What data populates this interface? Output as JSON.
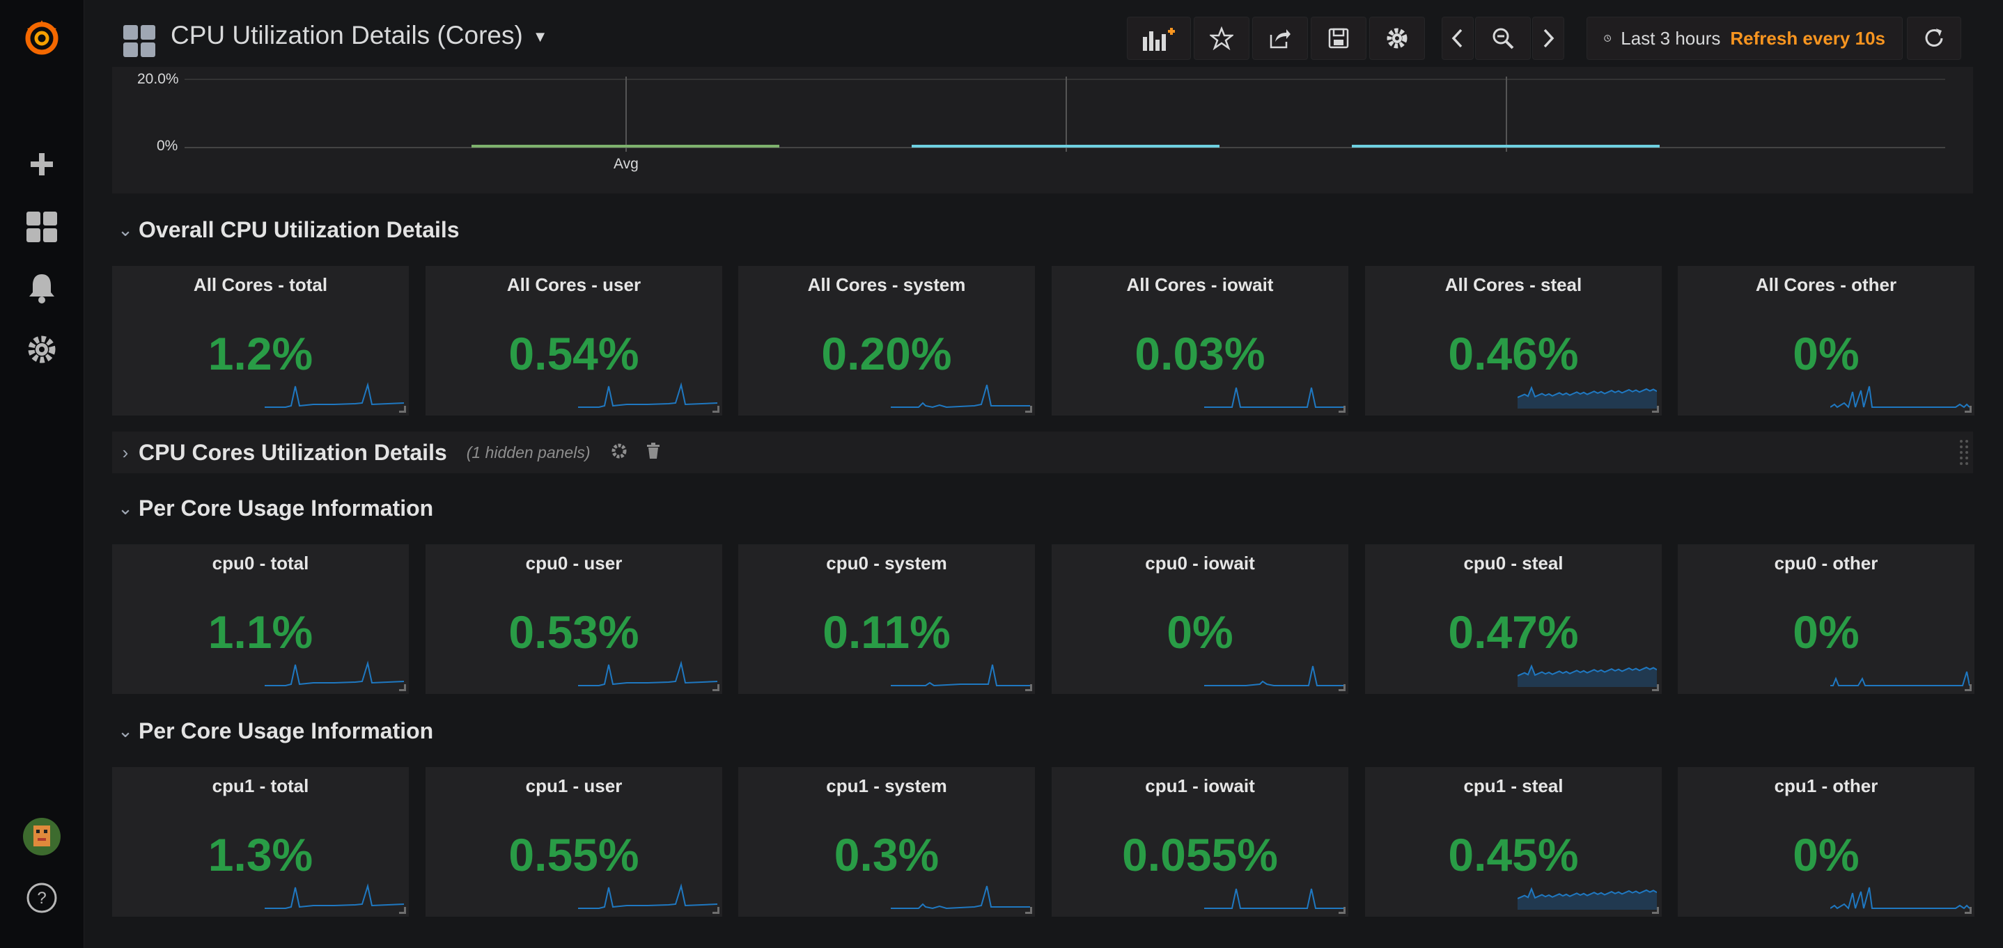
{
  "sidebar": {
    "items": [
      "grafana-logo-icon",
      "add-icon",
      "dashboards-icon",
      "alerting-icon",
      "configuration-icon"
    ],
    "bottom": [
      "user-avatar",
      "help-icon"
    ]
  },
  "nav": {
    "dashboard_title": "CPU Utilization Details (Cores)",
    "time_range": "Last 3 hours",
    "refresh": "Refresh every 10s"
  },
  "graph_strip": {
    "y_labels": [
      "20.0%",
      "0%"
    ],
    "x_label": "Avg",
    "bar_colors": [
      "#7eb26d",
      "#6ed0e0",
      "#6ed0e0"
    ]
  },
  "rows": {
    "overall": {
      "title": "Overall CPU Utilization Details"
    },
    "cores": {
      "title": "CPU Cores Utilization Details",
      "hidden_note": "(1 hidden panels)"
    },
    "per_core_1": {
      "title": "Per Core Usage Information"
    },
    "per_core_2": {
      "title": "Per Core Usage Information"
    }
  },
  "panels": {
    "overall": [
      {
        "title": "All Cores - total",
        "value": "1.2%",
        "spark": "a"
      },
      {
        "title": "All Cores - user",
        "value": "0.54%",
        "spark": "a"
      },
      {
        "title": "All Cores - system",
        "value": "0.20%",
        "spark": "b"
      },
      {
        "title": "All Cores - iowait",
        "value": "0.03%",
        "spark": "c"
      },
      {
        "title": "All Cores - steal",
        "value": "0.46%",
        "spark": "steal"
      },
      {
        "title": "All Cores - other",
        "value": "0%",
        "spark": "other"
      }
    ],
    "cpu0": [
      {
        "title": "cpu0 - total",
        "value": "1.1%",
        "spark": "a"
      },
      {
        "title": "cpu0 - user",
        "value": "0.53%",
        "spark": "a"
      },
      {
        "title": "cpu0 - system",
        "value": "0.11%",
        "spark": "d"
      },
      {
        "title": "cpu0 - iowait",
        "value": "0%",
        "spark": "e"
      },
      {
        "title": "cpu0 - steal",
        "value": "0.47%",
        "spark": "steal"
      },
      {
        "title": "cpu0 - other",
        "value": "0%",
        "spark": "f"
      }
    ],
    "cpu1": [
      {
        "title": "cpu1 - total",
        "value": "1.3%",
        "spark": "a"
      },
      {
        "title": "cpu1 - user",
        "value": "0.55%",
        "spark": "a"
      },
      {
        "title": "cpu1 - system",
        "value": "0.3%",
        "spark": "b"
      },
      {
        "title": "cpu1 - iowait",
        "value": "0.055%",
        "spark": "c"
      },
      {
        "title": "cpu1 - steal",
        "value": "0.45%",
        "spark": "steal"
      },
      {
        "title": "cpu1 - other",
        "value": "0%",
        "spark": "other"
      }
    ]
  },
  "colors": {
    "value_green": "#299c46",
    "sparkline_blue": "#1f78c1",
    "accent_orange": "#f79520"
  }
}
